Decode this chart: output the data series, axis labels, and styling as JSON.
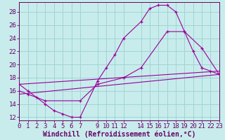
{
  "xlabel": "Windchill (Refroidissement éolien,°C)",
  "bg_color": "#c8ecec",
  "line_color": "#990099",
  "grid_color": "#a0d4d4",
  "axis_color": "#660066",
  "text_color": "#660066",
  "line1_x": [
    0,
    1,
    2,
    3,
    4,
    5,
    6,
    7,
    9,
    10,
    11,
    12,
    14,
    15,
    16,
    17,
    18,
    19,
    20,
    21,
    22,
    23
  ],
  "line1_y": [
    17.0,
    16.0,
    15.0,
    14.0,
    13.0,
    12.5,
    12.0,
    12.0,
    17.5,
    19.5,
    21.5,
    24.0,
    26.5,
    28.5,
    29.0,
    29.0,
    28.0,
    25.0,
    22.0,
    19.5,
    19.0,
    18.5
  ],
  "line2_x": [
    0,
    23
  ],
  "line2_y": [
    15.5,
    18.5
  ],
  "line3_x": [
    0,
    1,
    3,
    7,
    9,
    12,
    14,
    17,
    19,
    21,
    23
  ],
  "line3_y": [
    16.0,
    15.5,
    14.5,
    14.5,
    17.0,
    18.0,
    19.5,
    25.0,
    25.0,
    22.5,
    18.5
  ],
  "line4_x": [
    0,
    23
  ],
  "line4_y": [
    17.0,
    19.0
  ],
  "xlim": [
    0,
    23
  ],
  "ylim": [
    11.5,
    29.5
  ],
  "xticks": [
    0,
    1,
    2,
    3,
    4,
    5,
    6,
    7,
    9,
    10,
    11,
    12,
    14,
    15,
    16,
    17,
    18,
    19,
    20,
    21,
    22,
    23
  ],
  "yticks": [
    12,
    14,
    16,
    18,
    20,
    22,
    24,
    26,
    28
  ],
  "tick_fontsize": 6.5,
  "xlabel_fontsize": 7.0
}
